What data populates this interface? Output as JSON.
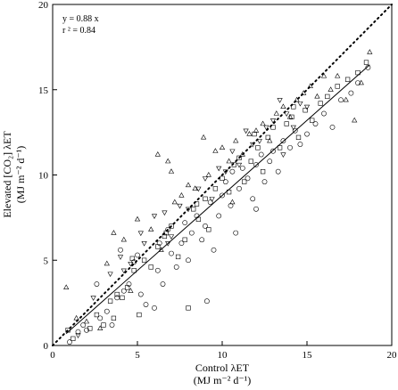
{
  "chart_data": {
    "type": "scatter",
    "title": "",
    "xlabel": {
      "line1": "Control λET",
      "line2": "(MJ m⁻² d⁻¹)"
    },
    "ylabel": {
      "line1": "Elevated [CO₂] λET",
      "line2": "(MJ m⁻² d⁻¹)"
    },
    "xlim": [
      0,
      20
    ],
    "ylim": [
      0,
      20
    ],
    "xticks": [
      0,
      5,
      10,
      15,
      20
    ],
    "yticks": [
      0,
      5,
      10,
      15,
      20
    ],
    "grid": false,
    "legend": "none",
    "annotations": [
      "y = 0.88 x",
      "r ² = 0.84"
    ],
    "lines": [
      {
        "kind": "1:1",
        "style": "dotted",
        "x": [
          0,
          20
        ],
        "y": [
          0,
          20
        ]
      },
      {
        "kind": "regression",
        "style": "solid",
        "slope": 0.88,
        "x": [
          0.8,
          18.7
        ],
        "y": [
          0.7,
          16.46
        ]
      }
    ],
    "series": [
      {
        "marker": "circle",
        "points": [
          [
            1.0,
            0.2
          ],
          [
            1.5,
            0.8
          ],
          [
            1.8,
            1.2
          ],
          [
            2.0,
            0.9
          ],
          [
            2.8,
            1.6
          ],
          [
            3.2,
            2.0
          ],
          [
            3.5,
            1.2
          ],
          [
            4.2,
            3.2
          ],
          [
            4.5,
            3.6
          ],
          [
            4.8,
            4.9
          ],
          [
            5.0,
            5.3
          ],
          [
            5.5,
            2.4
          ],
          [
            6.0,
            2.2
          ],
          [
            6.2,
            4.4
          ],
          [
            6.5,
            3.6
          ],
          [
            6.8,
            6.8
          ],
          [
            7.0,
            5.4
          ],
          [
            7.3,
            4.6
          ],
          [
            7.6,
            6.0
          ],
          [
            8.0,
            5.0
          ],
          [
            8.2,
            6.6
          ],
          [
            8.5,
            7.6
          ],
          [
            8.8,
            6.2
          ],
          [
            9.0,
            7.0
          ],
          [
            9.1,
            2.6
          ],
          [
            9.3,
            8.4
          ],
          [
            9.5,
            5.6
          ],
          [
            9.8,
            7.6
          ],
          [
            10.0,
            8.8
          ],
          [
            10.2,
            9.6
          ],
          [
            10.5,
            8.2
          ],
          [
            10.8,
            6.6
          ],
          [
            11.0,
            9.2
          ],
          [
            11.2,
            10.4
          ],
          [
            11.5,
            9.8
          ],
          [
            11.8,
            8.6
          ],
          [
            12.0,
            10.6
          ],
          [
            12.3,
            11.2
          ],
          [
            12.5,
            9.6
          ],
          [
            12.8,
            10.8
          ],
          [
            13.0,
            11.4
          ],
          [
            13.3,
            10.2
          ],
          [
            13.6,
            12.0
          ],
          [
            14.0,
            11.6
          ],
          [
            14.3,
            12.6
          ],
          [
            14.6,
            11.8
          ],
          [
            15.0,
            12.4
          ],
          [
            15.5,
            13.0
          ],
          [
            16.0,
            13.6
          ],
          [
            16.5,
            12.8
          ],
          [
            17.0,
            14.4
          ],
          [
            17.6,
            14.8
          ],
          [
            18.0,
            15.4
          ],
          [
            18.6,
            16.3
          ],
          [
            2.6,
            3.6
          ],
          [
            3.8,
            2.8
          ],
          [
            4.0,
            5.6
          ],
          [
            5.2,
            3.0
          ],
          [
            6.3,
            6.0
          ],
          [
            7.8,
            7.2
          ],
          [
            10.6,
            10.2
          ],
          [
            12.0,
            8.0
          ]
        ]
      },
      {
        "marker": "square",
        "points": [
          [
            0.9,
            0.9
          ],
          [
            1.2,
            0.4
          ],
          [
            2.2,
            1.0
          ],
          [
            2.6,
            1.8
          ],
          [
            3.0,
            1.2
          ],
          [
            3.4,
            2.6
          ],
          [
            3.8,
            3.0
          ],
          [
            4.1,
            2.8
          ],
          [
            4.4,
            3.4
          ],
          [
            4.8,
            4.4
          ],
          [
            5.1,
            1.8
          ],
          [
            5.4,
            5.0
          ],
          [
            5.8,
            4.6
          ],
          [
            6.2,
            5.8
          ],
          [
            6.6,
            6.4
          ],
          [
            7.0,
            7.0
          ],
          [
            7.4,
            5.2
          ],
          [
            7.8,
            6.2
          ],
          [
            8.0,
            2.2
          ],
          [
            8.3,
            8.0
          ],
          [
            8.6,
            7.4
          ],
          [
            9.0,
            8.6
          ],
          [
            9.2,
            6.8
          ],
          [
            9.6,
            9.2
          ],
          [
            10.0,
            9.8
          ],
          [
            10.4,
            9.0
          ],
          [
            10.7,
            10.6
          ],
          [
            11.0,
            11.0
          ],
          [
            11.3,
            9.6
          ],
          [
            11.7,
            10.8
          ],
          [
            12.1,
            11.6
          ],
          [
            12.4,
            10.2
          ],
          [
            12.7,
            12.2
          ],
          [
            13.0,
            12.8
          ],
          [
            13.4,
            11.6
          ],
          [
            13.8,
            13.0
          ],
          [
            14.1,
            13.4
          ],
          [
            14.5,
            12.2
          ],
          [
            14.9,
            13.8
          ],
          [
            15.3,
            13.2
          ],
          [
            15.8,
            14.2
          ],
          [
            16.2,
            14.6
          ],
          [
            16.8,
            15.2
          ],
          [
            17.4,
            15.6
          ],
          [
            18.0,
            16.0
          ],
          [
            18.5,
            16.6
          ],
          [
            4.7,
            5.1
          ],
          [
            6.7,
            6.6
          ],
          [
            8.5,
            8.3
          ],
          [
            11.9,
            12.4
          ],
          [
            3.6,
            1.6
          ],
          [
            14.2,
            14.0
          ]
        ]
      },
      {
        "marker": "triangle-up",
        "points": [
          [
            0.8,
            3.4
          ],
          [
            1.4,
            1.6
          ],
          [
            2.0,
            1.4
          ],
          [
            3.2,
            4.8
          ],
          [
            3.6,
            6.6
          ],
          [
            4.2,
            6.2
          ],
          [
            5.0,
            7.4
          ],
          [
            5.8,
            6.8
          ],
          [
            6.2,
            11.2
          ],
          [
            6.8,
            10.8
          ],
          [
            7.0,
            10.2
          ],
          [
            7.2,
            8.4
          ],
          [
            7.6,
            8.8
          ],
          [
            8.0,
            9.4
          ],
          [
            8.4,
            9.2
          ],
          [
            8.9,
            12.2
          ],
          [
            9.2,
            10.0
          ],
          [
            9.6,
            11.4
          ],
          [
            10.0,
            11.6
          ],
          [
            10.4,
            10.8
          ],
          [
            10.8,
            12.0
          ],
          [
            11.2,
            11.2
          ],
          [
            11.6,
            12.4
          ],
          [
            12.0,
            12.6
          ],
          [
            12.4,
            13.0
          ],
          [
            12.8,
            12.0
          ],
          [
            13.2,
            13.6
          ],
          [
            13.6,
            14.0
          ],
          [
            14.0,
            13.4
          ],
          [
            14.4,
            14.4
          ],
          [
            14.8,
            14.8
          ],
          [
            15.2,
            15.2
          ],
          [
            15.6,
            14.6
          ],
          [
            16.0,
            15.8
          ],
          [
            16.4,
            15.0
          ],
          [
            16.8,
            15.8
          ],
          [
            17.3,
            14.4
          ],
          [
            17.8,
            13.2
          ],
          [
            18.2,
            15.4
          ],
          [
            18.7,
            17.2
          ],
          [
            2.8,
            1.0
          ],
          [
            4.6,
            3.2
          ],
          [
            6.4,
            5.6
          ],
          [
            10.6,
            8.4
          ]
        ]
      },
      {
        "marker": "triangle-down",
        "points": [
          [
            1.5,
            0.6
          ],
          [
            2.4,
            2.8
          ],
          [
            3.4,
            4.2
          ],
          [
            4.0,
            5.2
          ],
          [
            4.6,
            4.8
          ],
          [
            5.4,
            6.0
          ],
          [
            6.0,
            7.6
          ],
          [
            6.6,
            7.8
          ],
          [
            7.0,
            6.4
          ],
          [
            7.5,
            8.2
          ],
          [
            8.0,
            8.0
          ],
          [
            8.6,
            9.2
          ],
          [
            9.0,
            9.8
          ],
          [
            9.4,
            8.6
          ],
          [
            9.8,
            10.4
          ],
          [
            10.2,
            10.2
          ],
          [
            10.6,
            11.4
          ],
          [
            11.0,
            10.6
          ],
          [
            11.4,
            12.6
          ],
          [
            11.8,
            11.8
          ],
          [
            12.2,
            12.0
          ],
          [
            12.6,
            12.8
          ],
          [
            13.0,
            13.2
          ],
          [
            13.4,
            14.4
          ],
          [
            13.8,
            13.6
          ],
          [
            14.2,
            12.8
          ],
          [
            14.6,
            14.2
          ],
          [
            15.0,
            14.0
          ],
          [
            4.2,
            4.4
          ],
          [
            6.8,
            6.0
          ],
          [
            13.6,
            11.2
          ],
          [
            5.2,
            6.6
          ]
        ]
      }
    ]
  }
}
